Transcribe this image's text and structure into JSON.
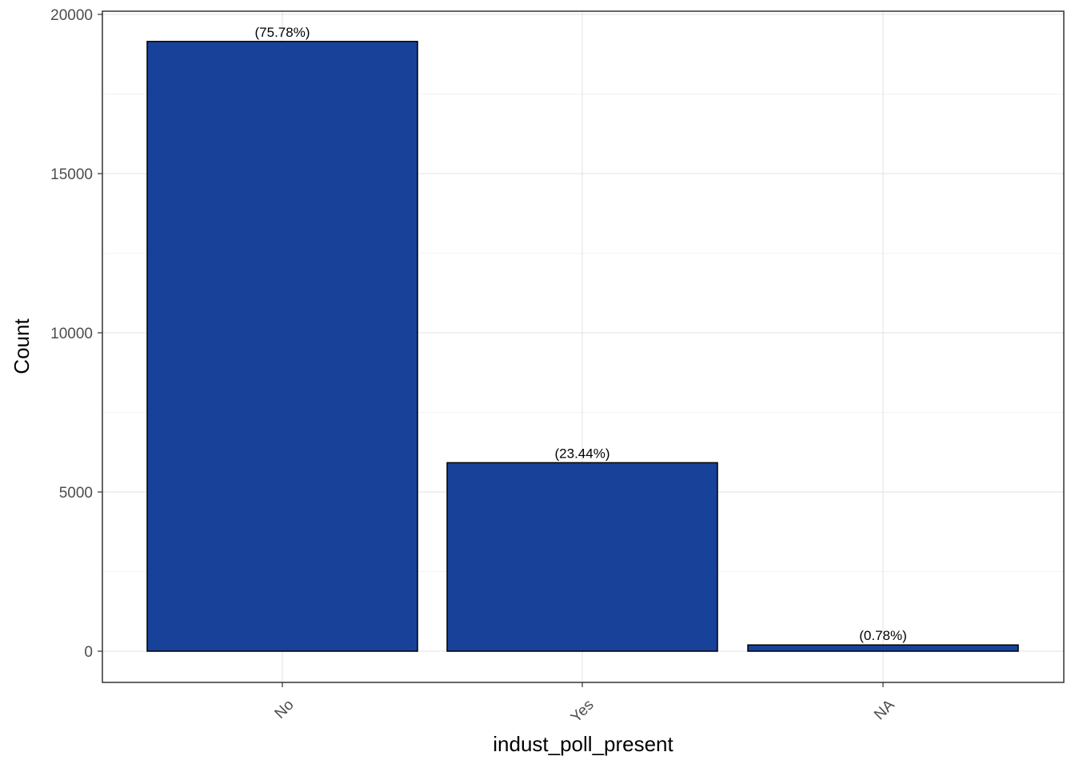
{
  "chart_data": {
    "type": "bar",
    "title": "",
    "xlabel": "indust_poll_present",
    "ylabel": "Count",
    "categories": [
      "No",
      "Yes",
      "NA"
    ],
    "values": [
      19150,
      5920,
      196
    ],
    "data_labels": [
      "(75.78%)",
      "(23.44%)",
      "(0.78%)"
    ],
    "ylim": [
      -1000,
      20100
    ],
    "y_ticks": [
      0,
      5000,
      10000,
      15000,
      20000
    ],
    "y_tick_labels": [
      "0",
      "5000",
      "10000",
      "15000",
      "20000"
    ],
    "grid": true,
    "legend": "none",
    "bar_color": "#18429A",
    "bar_edge_color": "#000000",
    "x_tick_rotation_deg": -45
  }
}
